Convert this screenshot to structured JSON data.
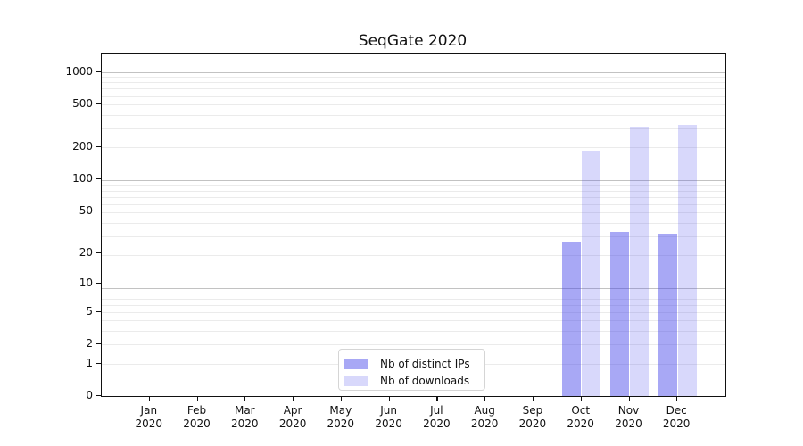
{
  "chart_data": {
    "type": "bar",
    "title": "SeqGate 2020",
    "categories": [
      {
        "label": "Jan",
        "sublabel": "2020"
      },
      {
        "label": "Feb",
        "sublabel": "2020"
      },
      {
        "label": "Mar",
        "sublabel": "2020"
      },
      {
        "label": "Apr",
        "sublabel": "2020"
      },
      {
        "label": "May",
        "sublabel": "2020"
      },
      {
        "label": "Jun",
        "sublabel": "2020"
      },
      {
        "label": "Jul",
        "sublabel": "2020"
      },
      {
        "label": "Aug",
        "sublabel": "2020"
      },
      {
        "label": "Sep",
        "sublabel": "2020"
      },
      {
        "label": "Oct",
        "sublabel": "2020"
      },
      {
        "label": "Nov",
        "sublabel": "2020"
      },
      {
        "label": "Dec",
        "sublabel": "2020"
      }
    ],
    "series": [
      {
        "name": "Nb of distinct IPs",
        "color": "rgba(62,62,233,0.45)",
        "apparent_color": "#a8a8f5",
        "values": [
          null,
          null,
          null,
          null,
          null,
          null,
          null,
          null,
          null,
          26,
          32,
          31
        ]
      },
      {
        "name": "Nb of downloads",
        "color": "rgba(62,62,233,0.20)",
        "apparent_color": "#d7d7fa",
        "values": [
          null,
          null,
          null,
          null,
          null,
          null,
          null,
          null,
          null,
          185,
          308,
          322
        ]
      }
    ],
    "xlabel": "",
    "ylabel": "",
    "yscale": "log1p",
    "ylim": [
      0,
      1480
    ],
    "yticks": [
      0,
      1,
      2,
      5,
      10,
      20,
      50,
      100,
      200,
      500,
      1000
    ],
    "grid": "major+minor",
    "legend_position": "lower center"
  }
}
